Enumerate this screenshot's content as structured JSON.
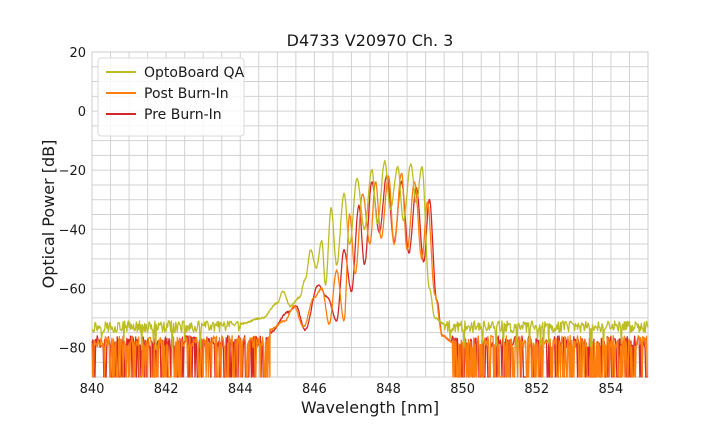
{
  "chart_data": {
    "type": "line",
    "title": "D4733 V20970 Ch. 3",
    "xlabel": "Wavelength [nm]",
    "ylabel": "Optical Power [dB]",
    "xlim": [
      840,
      855
    ],
    "ylim": [
      -90,
      20
    ],
    "xticks": [
      840,
      842,
      844,
      846,
      848,
      850,
      852,
      854
    ],
    "yticks": [
      20,
      0,
      -20,
      -40,
      -60,
      -80
    ],
    "x_minor_step": 0.5,
    "y_minor_step": 5,
    "grid": true,
    "legend_position": "top-left",
    "noise_floor_db": -90,
    "series": [
      {
        "name": "OptoBoard QA",
        "color": "#bcbd22",
        "baseline_db": -73,
        "spectrum": [
          [
            844.0,
            -72
          ],
          [
            844.6,
            -70
          ],
          [
            845.0,
            -65
          ],
          [
            845.15,
            -61
          ],
          [
            845.35,
            -66
          ],
          [
            845.6,
            -63
          ],
          [
            845.75,
            -57
          ],
          [
            845.9,
            -47
          ],
          [
            846.05,
            -53
          ],
          [
            846.2,
            -44
          ],
          [
            846.3,
            -59
          ],
          [
            846.45,
            -33
          ],
          [
            846.6,
            -52
          ],
          [
            846.8,
            -28
          ],
          [
            846.95,
            -45
          ],
          [
            847.15,
            -23
          ],
          [
            847.35,
            -40
          ],
          [
            847.55,
            -20
          ],
          [
            847.7,
            -38
          ],
          [
            847.9,
            -17
          ],
          [
            848.05,
            -33
          ],
          [
            848.25,
            -19
          ],
          [
            848.4,
            -37
          ],
          [
            848.6,
            -18
          ],
          [
            848.75,
            -31
          ],
          [
            848.9,
            -19
          ],
          [
            849.1,
            -60
          ],
          [
            849.25,
            -70
          ],
          [
            849.5,
            -72
          ]
        ]
      },
      {
        "name": "Post Burn-In",
        "color": "#ff7f0e",
        "baseline_db": -78,
        "spectrum": [
          [
            844.8,
            -74
          ],
          [
            845.2,
            -71
          ],
          [
            845.45,
            -66
          ],
          [
            845.7,
            -73
          ],
          [
            846.0,
            -63
          ],
          [
            846.2,
            -60
          ],
          [
            846.4,
            -72
          ],
          [
            846.6,
            -54
          ],
          [
            846.8,
            -71
          ],
          [
            846.95,
            -35
          ],
          [
            847.1,
            -55
          ],
          [
            847.3,
            -28
          ],
          [
            847.5,
            -45
          ],
          [
            847.65,
            -24
          ],
          [
            847.8,
            -43
          ],
          [
            848.0,
            -22
          ],
          [
            848.15,
            -45
          ],
          [
            848.35,
            -21
          ],
          [
            848.5,
            -47
          ],
          [
            848.7,
            -24
          ],
          [
            848.9,
            -50
          ],
          [
            849.05,
            -31
          ],
          [
            849.25,
            -62
          ],
          [
            849.45,
            -76
          ],
          [
            849.7,
            -78
          ]
        ]
      },
      {
        "name": "Pre Burn-In",
        "color": "#d62728",
        "baseline_db": -78,
        "spectrum": [
          [
            844.8,
            -75
          ],
          [
            845.3,
            -68
          ],
          [
            845.5,
            -66
          ],
          [
            845.75,
            -74
          ],
          [
            846.1,
            -59
          ],
          [
            846.35,
            -63
          ],
          [
            846.6,
            -71
          ],
          [
            846.8,
            -47
          ],
          [
            847.0,
            -61
          ],
          [
            847.2,
            -32
          ],
          [
            847.35,
            -52
          ],
          [
            847.55,
            -24
          ],
          [
            847.75,
            -41
          ],
          [
            847.95,
            -22
          ],
          [
            848.15,
            -44
          ],
          [
            848.35,
            -24
          ],
          [
            848.55,
            -48
          ],
          [
            848.75,
            -26
          ],
          [
            848.95,
            -51
          ],
          [
            849.1,
            -30
          ],
          [
            849.3,
            -64
          ],
          [
            849.45,
            -76
          ],
          [
            849.7,
            -78
          ]
        ]
      }
    ]
  }
}
